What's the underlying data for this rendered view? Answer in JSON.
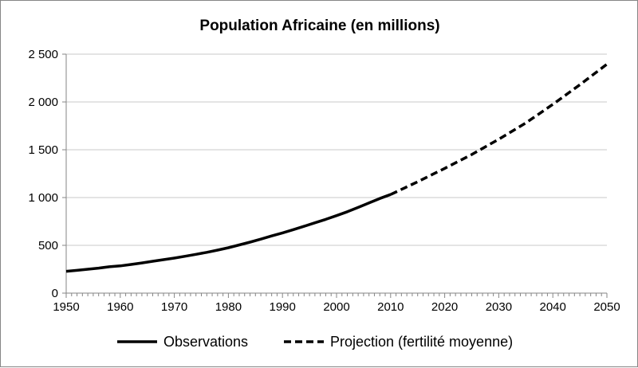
{
  "chart_data": {
    "type": "line",
    "title": "Population Africaine (en millions)",
    "xlabel": "",
    "ylabel": "",
    "xlim": [
      1950,
      2050
    ],
    "ylim": [
      0,
      2500
    ],
    "x_ticks": [
      1950,
      1960,
      1970,
      1980,
      1990,
      2000,
      2010,
      2020,
      2030,
      2040,
      2050
    ],
    "x_tick_labels": [
      "1950",
      "1960",
      "1970",
      "1980",
      "1990",
      "2000",
      "2010",
      "2020",
      "2030",
      "2040",
      "2050"
    ],
    "y_ticks": [
      0,
      500,
      1000,
      1500,
      2000,
      2500
    ],
    "y_tick_labels": [
      "0",
      "500",
      "1 000",
      "1 500",
      "2 000",
      "2 500"
    ],
    "grid": "horizontal",
    "legend_position": "bottom",
    "series": [
      {
        "name": "Observations",
        "style": "solid",
        "color": "#000000",
        "x": [
          1950,
          1952,
          1954,
          1956,
          1958,
          1960,
          1962,
          1964,
          1966,
          1968,
          1970,
          1972,
          1974,
          1976,
          1978,
          1980,
          1982,
          1984,
          1986,
          1988,
          1990,
          1992,
          1994,
          1996,
          1998,
          2000,
          2002,
          2004,
          2006,
          2008,
          2010
        ],
        "values": [
          228,
          238,
          250,
          262,
          276,
          285,
          300,
          316,
          333,
          350,
          367,
          386,
          406,
          427,
          450,
          475,
          504,
          533,
          565,
          598,
          630,
          664,
          699,
          736,
          772,
          811,
          852,
          897,
          943,
          990,
          1032
        ]
      },
      {
        "name": "Projection (fertilité moyenne)",
        "style": "dashed",
        "color": "#000000",
        "x": [
          2010,
          2015,
          2020,
          2025,
          2030,
          2035,
          2040,
          2045,
          2050
        ],
        "values": [
          1032,
          1165,
          1305,
          1450,
          1610,
          1780,
          1975,
          2180,
          2395
        ]
      }
    ]
  }
}
